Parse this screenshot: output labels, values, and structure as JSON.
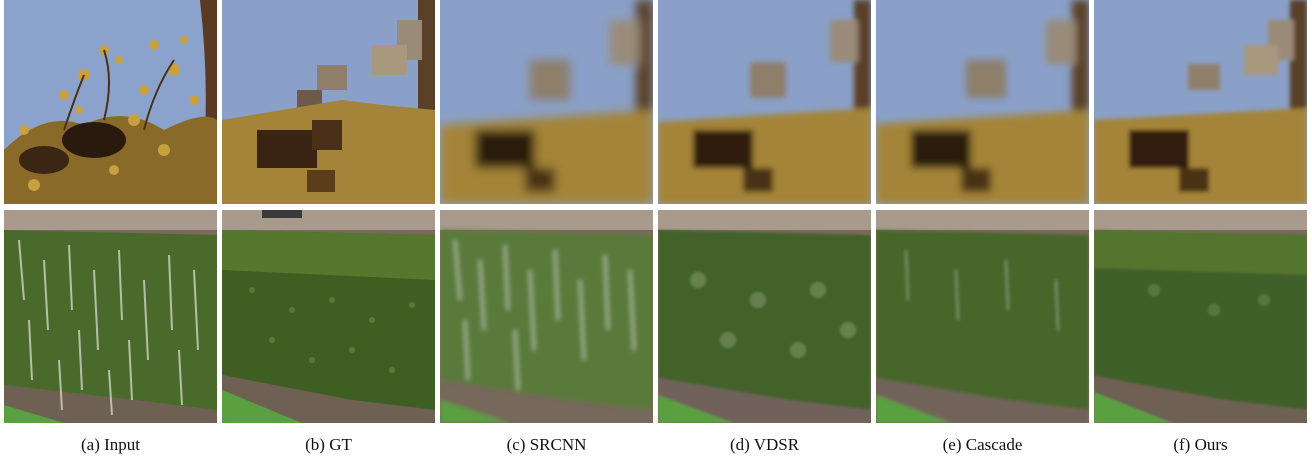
{
  "figure": {
    "columns": [
      {
        "key": "input",
        "caption": "(a) Input"
      },
      {
        "key": "gt",
        "caption": "(b) GT"
      },
      {
        "key": "srcnn",
        "caption": "(c) SRCNN"
      },
      {
        "key": "vdsr",
        "caption": "(d) VDSR"
      },
      {
        "key": "cascade",
        "caption": "(e) Cascade"
      },
      {
        "key": "ours",
        "caption": "(f) Ours"
      }
    ],
    "rows": [
      {
        "key": "tree",
        "subject": "tree-branches-against-sky"
      },
      {
        "key": "hedge",
        "subject": "green-hedge-with-path"
      }
    ]
  },
  "colors": {
    "sky": "#8aa0c8",
    "foliage_dark": "#2d1e12",
    "foliage_gold": "#b2903c",
    "trunk": "#6b4a2a",
    "hedge_dark": "#2f4a1e",
    "hedge_light": "#6f8a3a",
    "path": "#7a6a5c",
    "grass": "#5aa040",
    "wall": "#a89a8c"
  }
}
